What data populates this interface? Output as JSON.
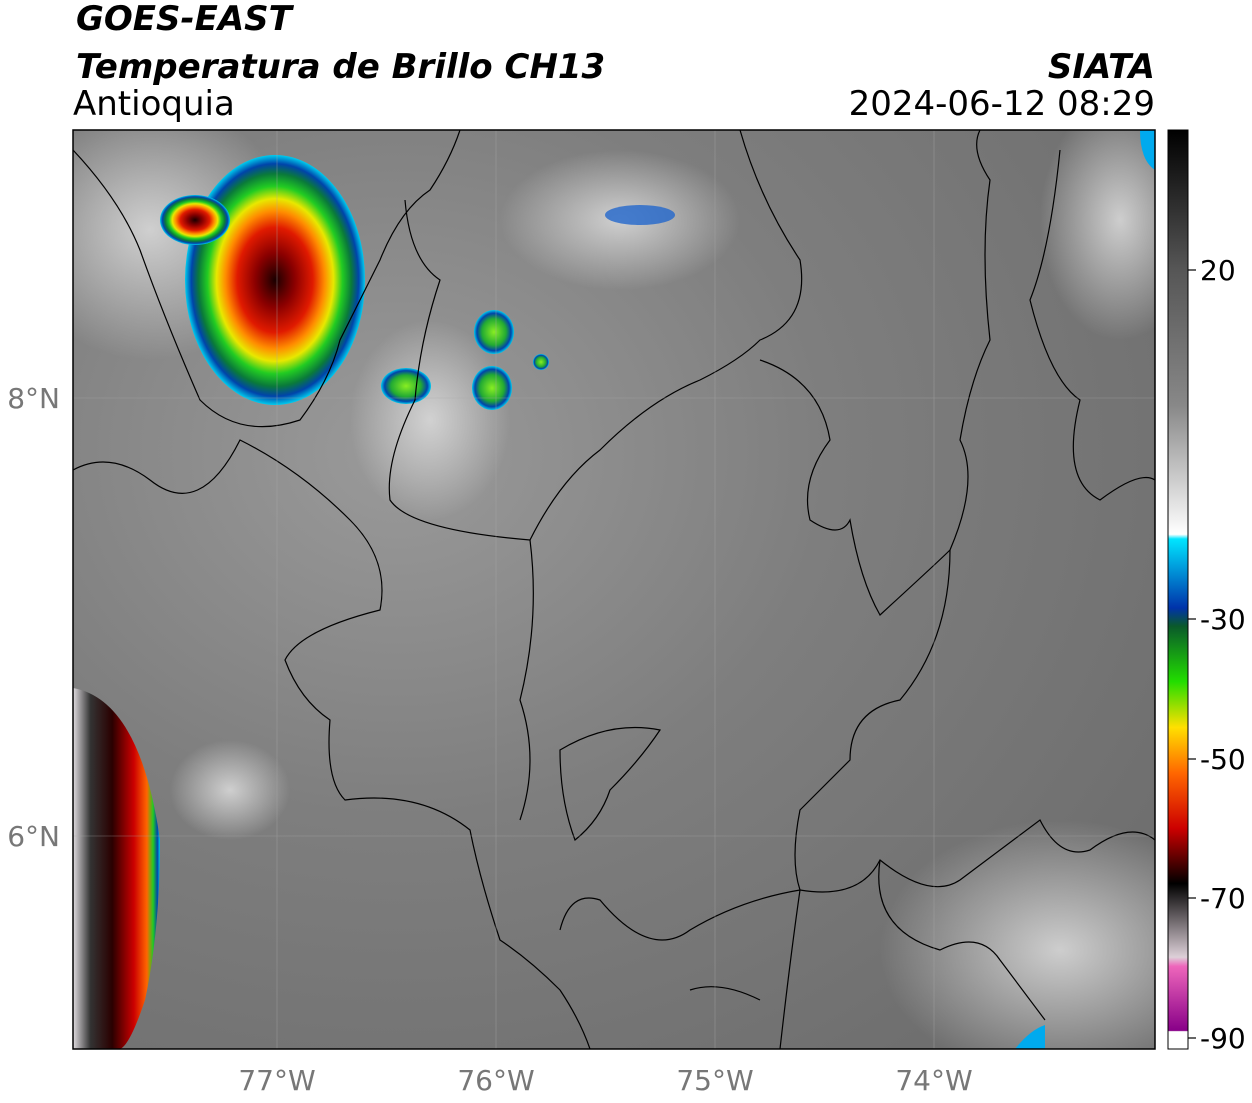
{
  "header": {
    "title": "GOES-EAST",
    "subtitle": "Temperatura de Brillo CH13",
    "region": "Antioquia",
    "source": "SIATA",
    "datetime": "2024-06-12 08:29"
  },
  "map": {
    "x_ticks": [
      "77°W",
      "76°W",
      "75°W",
      "74°W"
    ],
    "y_ticks": [
      "8°N",
      "6°N"
    ]
  },
  "colorbar": {
    "ticks": [
      "20",
      "-30",
      "-50",
      "-70",
      "-90"
    ]
  }
}
